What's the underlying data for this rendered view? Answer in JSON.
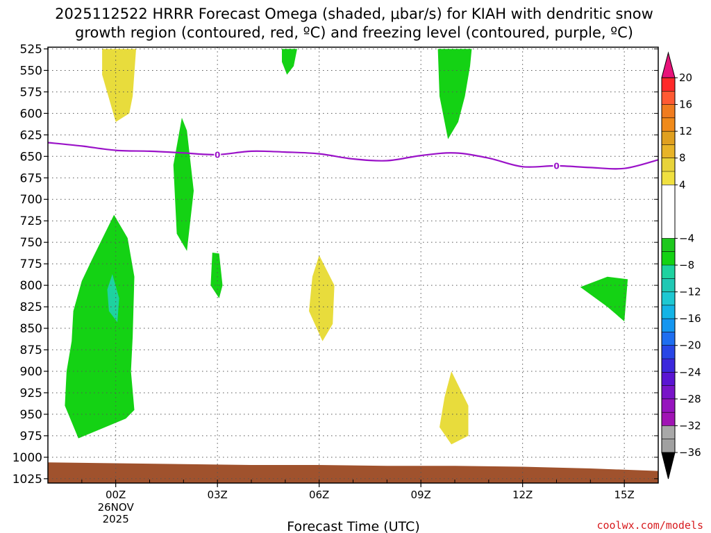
{
  "chart_data": {
    "type": "heatmap",
    "title_lines": [
      "2025112522 HRRR Forecast Omega (shaded, μbar/s) for KIAH with dendritic snow",
      "growth region (contoured, red, ºC) and freezing level (contoured, purple, ºC)"
    ],
    "xlabel": "Forecast Time (UTC)",
    "ylabel": "",
    "x_units": "forecast hour",
    "xlim": [
      -2,
      16
    ],
    "x_ticks": [
      {
        "value": 0,
        "label": "00Z",
        "sub": [
          "26NOV",
          "2025"
        ]
      },
      {
        "value": 3,
        "label": "03Z",
        "sub": []
      },
      {
        "value": 6,
        "label": "06Z",
        "sub": []
      },
      {
        "value": 9,
        "label": "09Z",
        "sub": []
      },
      {
        "value": 12,
        "label": "12Z",
        "sub": []
      },
      {
        "value": 15,
        "label": "15Z",
        "sub": []
      }
    ],
    "ylim": [
      1030,
      523
    ],
    "y_ticks": [
      525,
      550,
      575,
      600,
      625,
      650,
      675,
      700,
      725,
      750,
      775,
      800,
      825,
      850,
      875,
      900,
      925,
      950,
      975,
      1000,
      1025
    ],
    "colorbar": {
      "label_values": [
        "20",
        "16",
        "12",
        "8",
        "4",
        "−4",
        "−8",
        "−12",
        "−16",
        "−20",
        "−24",
        "−28",
        "−32",
        "−36"
      ],
      "segments": [
        {
          "min": 20,
          "max": null,
          "color": "#e8137a"
        },
        {
          "min": 18,
          "max": 20,
          "color": "#ff2a2a"
        },
        {
          "min": 16,
          "max": 18,
          "color": "#ff5a33"
        },
        {
          "min": 14,
          "max": 16,
          "color": "#f07c1f"
        },
        {
          "min": 12,
          "max": 14,
          "color": "#f08a1a"
        },
        {
          "min": 10,
          "max": 12,
          "color": "#e0a020"
        },
        {
          "min": 8,
          "max": 10,
          "color": "#e8b428"
        },
        {
          "min": 6,
          "max": 8,
          "color": "#e8d33a"
        },
        {
          "min": 4,
          "max": 6,
          "color": "#f0e040"
        },
        {
          "min": -4,
          "max": 4,
          "color": "#ffffff"
        },
        {
          "min": -6,
          "max": -4,
          "color": "#1ec81e"
        },
        {
          "min": -8,
          "max": -6,
          "color": "#14d214"
        },
        {
          "min": -10,
          "max": -8,
          "color": "#1ed2a0"
        },
        {
          "min": -12,
          "max": -10,
          "color": "#20c8b4"
        },
        {
          "min": -14,
          "max": -12,
          "color": "#1ec8d2"
        },
        {
          "min": -16,
          "max": -14,
          "color": "#14b4e6"
        },
        {
          "min": -18,
          "max": -16,
          "color": "#1496f0"
        },
        {
          "min": -20,
          "max": -18,
          "color": "#1e6ef0"
        },
        {
          "min": -22,
          "max": -20,
          "color": "#2846e6"
        },
        {
          "min": -24,
          "max": -22,
          "color": "#3c28dc"
        },
        {
          "min": -26,
          "max": -24,
          "color": "#5a14d2"
        },
        {
          "min": -28,
          "max": -26,
          "color": "#7814c8"
        },
        {
          "min": -30,
          "max": -28,
          "color": "#9614be"
        },
        {
          "min": -32,
          "max": -30,
          "color": "#a014b4"
        },
        {
          "min": -34,
          "max": -32,
          "color": "#a8a8a8"
        },
        {
          "min": -36,
          "max": -34,
          "color": "#a0a0a0"
        },
        {
          "min": null,
          "max": -36,
          "color": "#000000"
        }
      ]
    },
    "shaded_regions": [
      {
        "name": "rising-motion-yellow-0z-upper",
        "omega_class": "4 to 8",
        "color": "#e8dc3c",
        "points": [
          [
            -0.4,
            525
          ],
          [
            0.6,
            525
          ],
          [
            0.5,
            580
          ],
          [
            0.4,
            600
          ],
          [
            0.0,
            610
          ],
          [
            -0.4,
            555
          ]
        ]
      },
      {
        "name": "sinking-motion-green-05z-upper",
        "omega_class": "-4 to -8",
        "color": "#14d214",
        "points": [
          [
            4.9,
            525
          ],
          [
            5.35,
            525
          ],
          [
            5.25,
            545
          ],
          [
            5.05,
            555
          ],
          [
            4.9,
            540
          ]
        ]
      },
      {
        "name": "sinking-motion-green-10z-upper",
        "omega_class": "-4 to -8",
        "color": "#14d214",
        "points": [
          [
            9.5,
            525
          ],
          [
            10.5,
            525
          ],
          [
            10.45,
            545
          ],
          [
            10.3,
            580
          ],
          [
            10.1,
            610
          ],
          [
            9.8,
            630
          ],
          [
            9.55,
            580
          ]
        ]
      },
      {
        "name": "sinking-motion-green-02z-column",
        "omega_class": "-4 to -8",
        "color": "#14d214",
        "points": [
          [
            1.95,
            605
          ],
          [
            2.1,
            620
          ],
          [
            2.3,
            690
          ],
          [
            2.1,
            760
          ],
          [
            1.8,
            740
          ],
          [
            1.7,
            660
          ]
        ]
      },
      {
        "name": "sinking-motion-green-00z-lower",
        "omega_class": "-4 to -8",
        "color": "#14d214",
        "points": [
          [
            -0.05,
            718
          ],
          [
            0.35,
            745
          ],
          [
            0.55,
            790
          ],
          [
            0.5,
            860
          ],
          [
            0.45,
            900
          ],
          [
            0.55,
            945
          ],
          [
            0.3,
            955
          ],
          [
            -1.1,
            978
          ],
          [
            -1.5,
            940
          ],
          [
            -1.45,
            900
          ],
          [
            -1.3,
            865
          ],
          [
            -1.25,
            830
          ],
          [
            -1.0,
            795
          ],
          [
            -0.7,
            770
          ]
        ]
      },
      {
        "name": "sinking-motion-teal-00z-core",
        "omega_class": "-8 to -12",
        "color": "#1ed2a0",
        "points": [
          [
            -0.1,
            787
          ],
          [
            0.1,
            815
          ],
          [
            0.05,
            843
          ],
          [
            -0.2,
            830
          ],
          [
            -0.25,
            805
          ]
        ]
      },
      {
        "name": "sinking-motion-green-03z-small",
        "omega_class": "-4 to -8",
        "color": "#14d214",
        "points": [
          [
            2.85,
            762
          ],
          [
            3.05,
            763
          ],
          [
            3.15,
            800
          ],
          [
            3.05,
            815
          ],
          [
            2.8,
            800
          ]
        ]
      },
      {
        "name": "rising-motion-yellow-06z",
        "omega_class": "4 to 8",
        "color": "#e8dc3c",
        "points": [
          [
            6.0,
            765
          ],
          [
            6.45,
            800
          ],
          [
            6.4,
            845
          ],
          [
            6.1,
            865
          ],
          [
            5.7,
            830
          ],
          [
            5.8,
            790
          ]
        ]
      },
      {
        "name": "rising-motion-yellow-10z-lower",
        "omega_class": "4 to 8",
        "color": "#e8dc3c",
        "points": [
          [
            9.9,
            900
          ],
          [
            10.4,
            940
          ],
          [
            10.4,
            975
          ],
          [
            9.9,
            985
          ],
          [
            9.55,
            965
          ],
          [
            9.7,
            930
          ]
        ]
      },
      {
        "name": "sinking-motion-green-14z",
        "omega_class": "-4 to -8",
        "color": "#14d214",
        "points": [
          [
            13.7,
            802
          ],
          [
            14.5,
            790
          ],
          [
            15.1,
            793
          ],
          [
            15.0,
            842
          ],
          [
            14.5,
            825
          ]
        ]
      }
    ],
    "freezing_level": {
      "label": "0",
      "color": "#9a12c8",
      "x": [
        -2,
        -1,
        0,
        1,
        2,
        3,
        4,
        5,
        6,
        7,
        8,
        9,
        10,
        11,
        12,
        13,
        14,
        15,
        16
      ],
      "y": [
        634,
        638,
        643,
        644,
        646,
        648,
        644,
        645,
        647,
        653,
        655,
        649,
        646,
        652,
        662,
        661,
        663,
        664,
        654
      ],
      "label_at_x": [
        3,
        13
      ]
    },
    "surface_fill": {
      "color": "#a0522d",
      "x": [
        -2,
        0,
        2,
        4,
        6,
        8,
        10,
        12,
        14,
        16
      ],
      "y": [
        1006,
        1007,
        1008,
        1009,
        1009,
        1010,
        1010,
        1011,
        1013,
        1016
      ]
    },
    "credit": "coolwx.com/models"
  }
}
